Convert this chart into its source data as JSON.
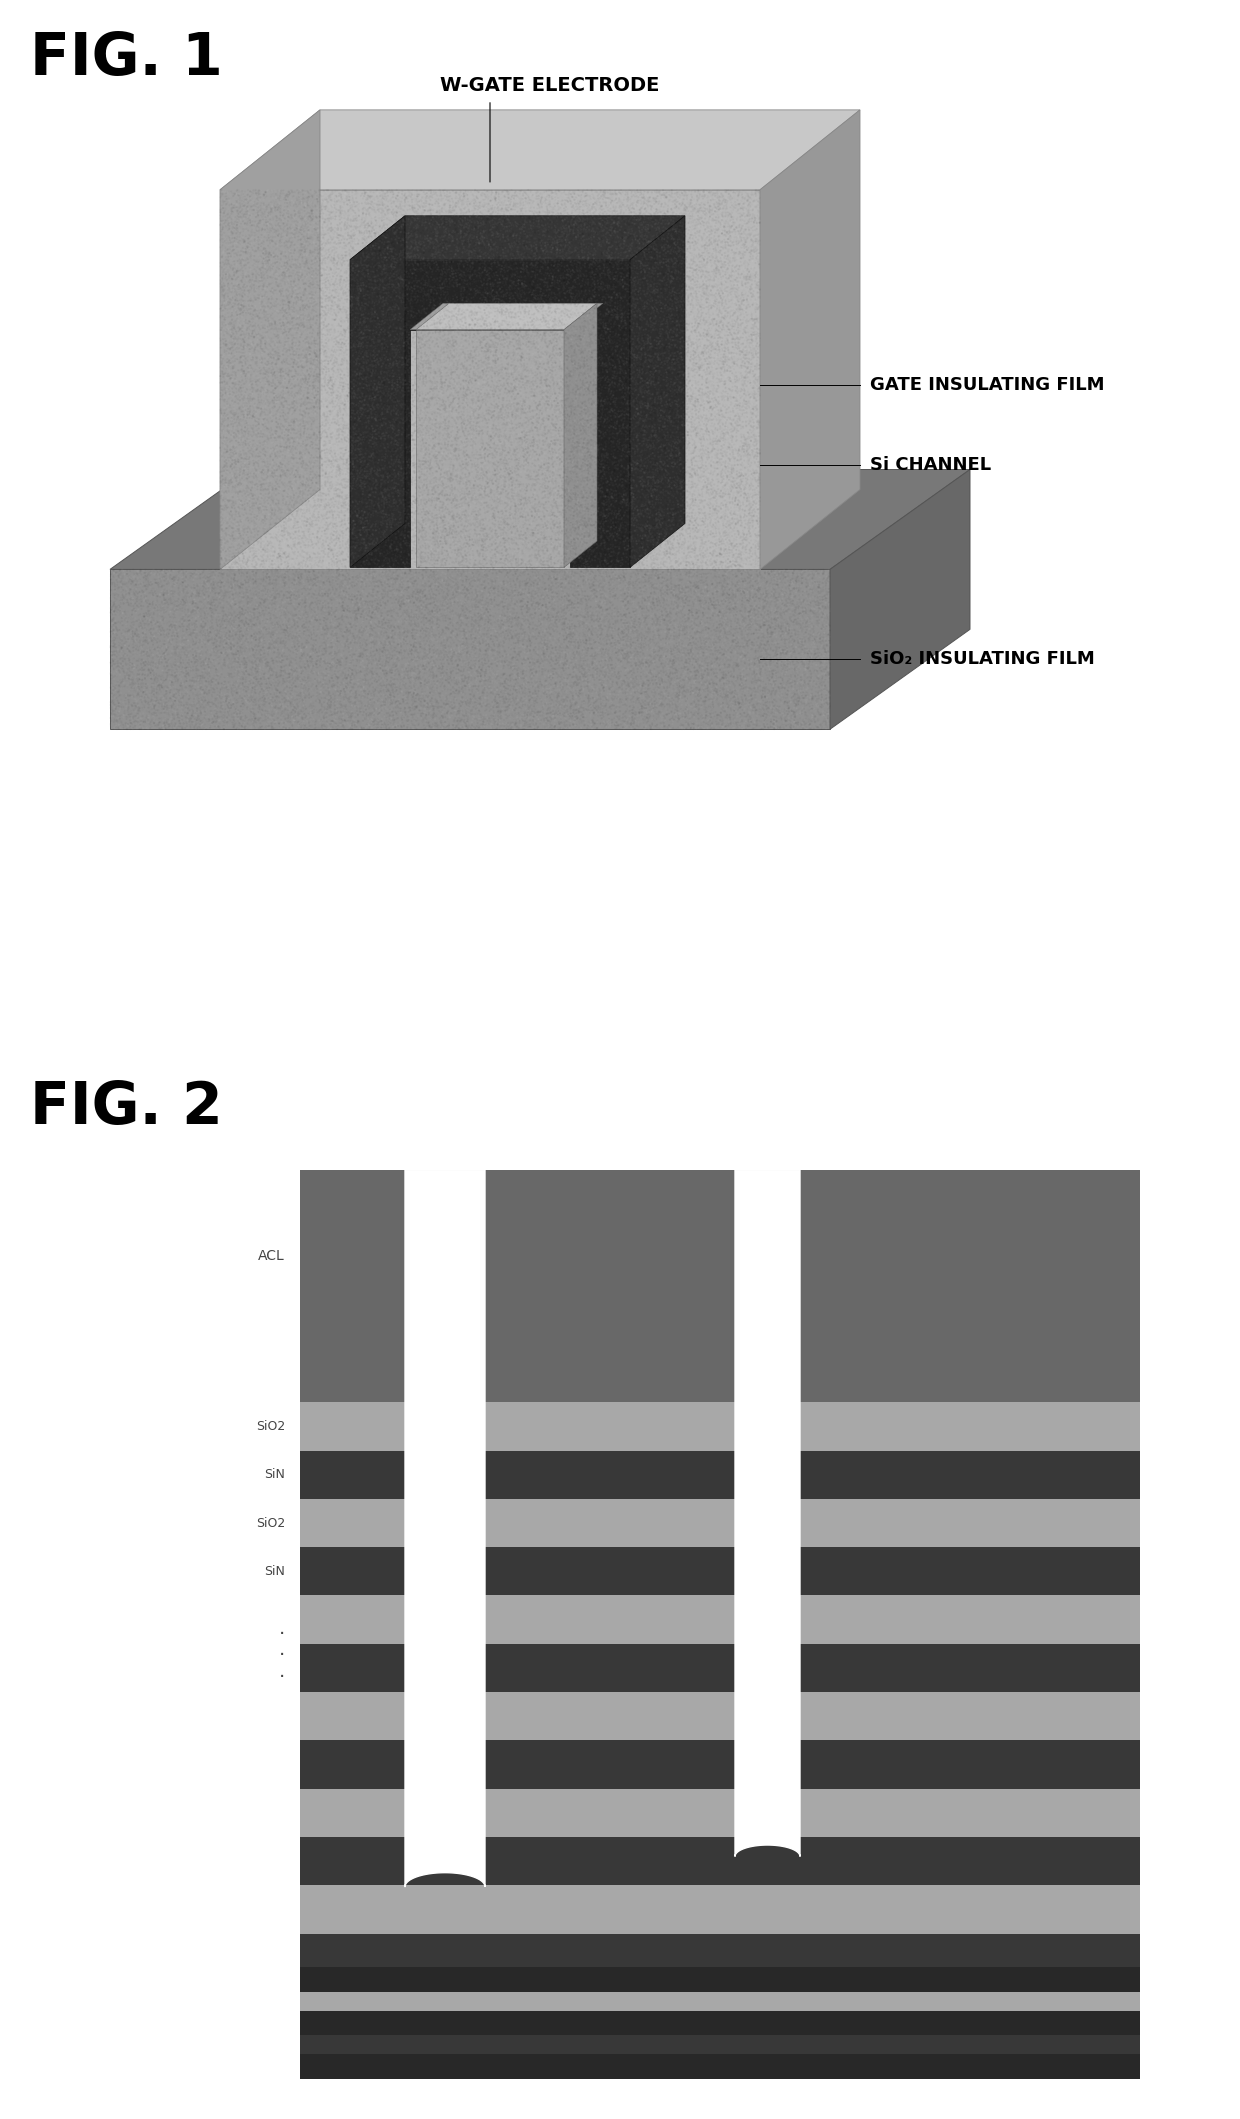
{
  "fig1_title": "FIG. 1",
  "fig2_title": "FIG. 2",
  "fig1_labels": {
    "w_gate": "W-GATE ELECTRODE",
    "gate_insulating": "GATE INSULATING FILM",
    "si_channel": "Si CHANNEL",
    "sio2_insulating": "SiO₂ INSULATING FILM"
  },
  "fig2_labels": {
    "acl": "ACL",
    "sio2_1": "SiO2",
    "sin_1": "SiN",
    "sio2_2": "SiO2",
    "sin_2": "SiN"
  },
  "colors": {
    "bg": "#ffffff",
    "cube_top": "#c8c8c8",
    "cube_front": "#b8b8b8",
    "cube_right": "#989898",
    "cube_left_shadow": "#a0a0a0",
    "gate_dark": "#252525",
    "gate_dark2": "#353535",
    "channel_front": "#a8a8a8",
    "channel_top": "#c0c0c0",
    "channel_right": "#909090",
    "slab_top": "#787878",
    "slab_front": "#909090",
    "slab_right": "#686868",
    "slab_front2": "#a0a0a0",
    "noise_gray": "#d0d0d0",
    "fig2_acl": "#686868",
    "fig2_light": "#a8a8a8",
    "fig2_dark": "#404040",
    "fig2_mid": "#606060"
  },
  "font_size_title": 42,
  "font_size_label": 13
}
